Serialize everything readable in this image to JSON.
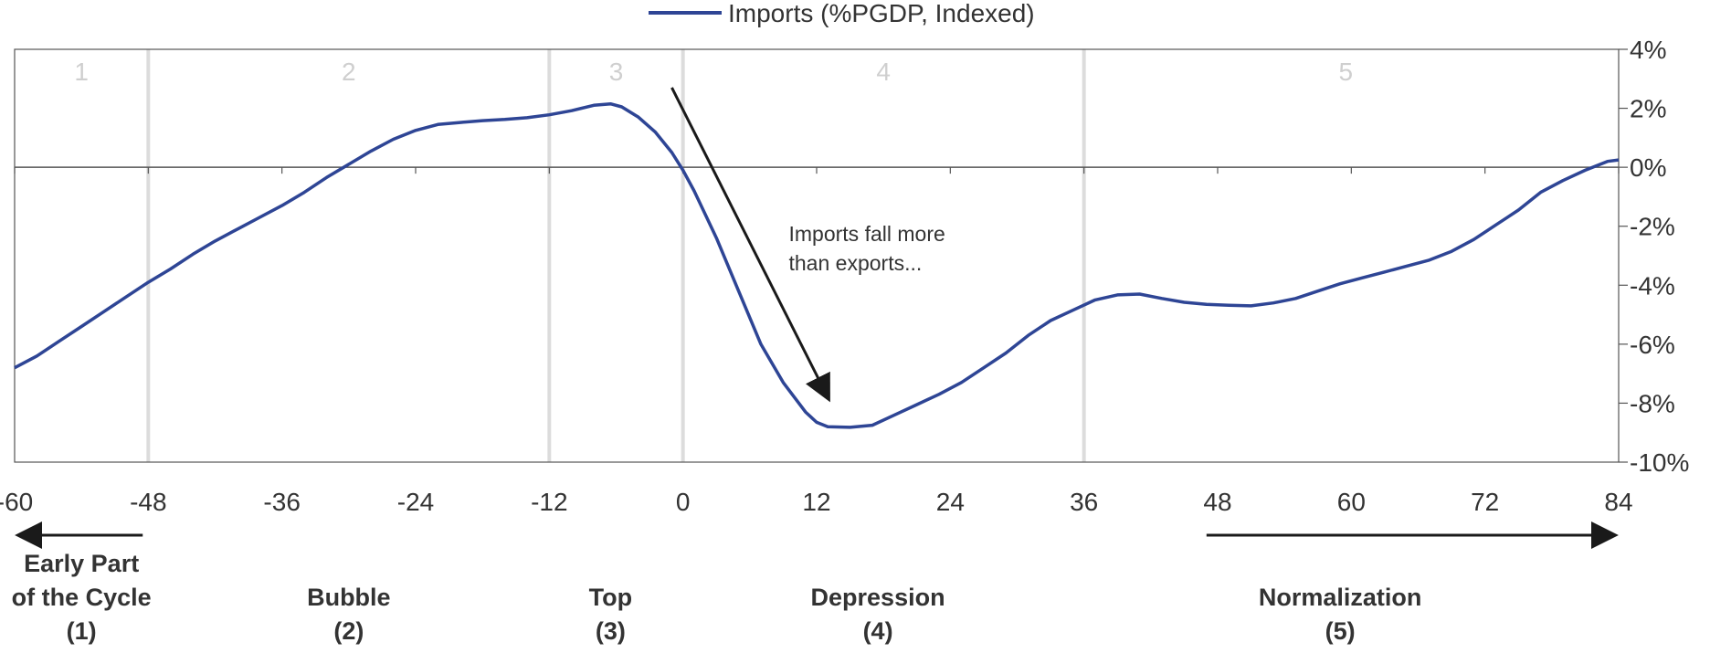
{
  "chart_data": {
    "type": "line",
    "legend": {
      "position": "top-center",
      "label": "Imports (%PGDP, Indexed)"
    },
    "x_ticks": [
      -60,
      -48,
      -36,
      -24,
      -12,
      0,
      12,
      24,
      36,
      48,
      60,
      72,
      84
    ],
    "y_ticks": [
      4,
      2,
      0,
      -2,
      -4,
      -6,
      -8,
      -10
    ],
    "y_tick_suffix": "%",
    "xlim": [
      -60,
      84
    ],
    "ylim": [
      -10,
      4
    ],
    "y_axis_side": "right",
    "grid": false,
    "phase_boundaries": [
      -48,
      -12,
      0,
      36
    ],
    "phase_numbers": [
      {
        "x": -54,
        "label": "1"
      },
      {
        "x": -30,
        "label": "2"
      },
      {
        "x": -6,
        "label": "3"
      },
      {
        "x": 18,
        "label": "4"
      },
      {
        "x": 59.5,
        "label": "5"
      }
    ],
    "series": [
      {
        "name": "Imports (%PGDP, Indexed)",
        "color": "#2e4595",
        "points": [
          [
            -60,
            -6.8
          ],
          [
            -58,
            -6.4
          ],
          [
            -56,
            -5.9
          ],
          [
            -54,
            -5.4
          ],
          [
            -52,
            -4.9
          ],
          [
            -50,
            -4.4
          ],
          [
            -48,
            -3.9
          ],
          [
            -46,
            -3.45
          ],
          [
            -44,
            -2.95
          ],
          [
            -42,
            -2.5
          ],
          [
            -40,
            -2.1
          ],
          [
            -38,
            -1.7
          ],
          [
            -36,
            -1.3
          ],
          [
            -34,
            -0.85
          ],
          [
            -32,
            -0.35
          ],
          [
            -30,
            0.1
          ],
          [
            -28,
            0.55
          ],
          [
            -26,
            0.95
          ],
          [
            -24,
            1.25
          ],
          [
            -22,
            1.45
          ],
          [
            -20,
            1.52
          ],
          [
            -18,
            1.58
          ],
          [
            -16,
            1.62
          ],
          [
            -14,
            1.68
          ],
          [
            -12,
            1.78
          ],
          [
            -10,
            1.92
          ],
          [
            -8,
            2.1
          ],
          [
            -6.5,
            2.15
          ],
          [
            -5.5,
            2.05
          ],
          [
            -4,
            1.7
          ],
          [
            -2.5,
            1.2
          ],
          [
            -1,
            0.5
          ],
          [
            0,
            -0.1
          ],
          [
            1,
            -0.8
          ],
          [
            3,
            -2.4
          ],
          [
            5,
            -4.2
          ],
          [
            7,
            -6.0
          ],
          [
            9,
            -7.3
          ],
          [
            11,
            -8.3
          ],
          [
            12,
            -8.65
          ],
          [
            13,
            -8.8
          ],
          [
            15,
            -8.82
          ],
          [
            17,
            -8.75
          ],
          [
            19,
            -8.4
          ],
          [
            21,
            -8.05
          ],
          [
            23,
            -7.7
          ],
          [
            25,
            -7.3
          ],
          [
            27,
            -6.8
          ],
          [
            29,
            -6.3
          ],
          [
            31,
            -5.7
          ],
          [
            33,
            -5.2
          ],
          [
            35,
            -4.85
          ],
          [
            37,
            -4.5
          ],
          [
            39,
            -4.33
          ],
          [
            41,
            -4.3
          ],
          [
            43,
            -4.45
          ],
          [
            45,
            -4.58
          ],
          [
            47,
            -4.65
          ],
          [
            49,
            -4.68
          ],
          [
            51,
            -4.7
          ],
          [
            53,
            -4.6
          ],
          [
            55,
            -4.45
          ],
          [
            57,
            -4.2
          ],
          [
            59,
            -3.95
          ],
          [
            61,
            -3.75
          ],
          [
            63,
            -3.55
          ],
          [
            65,
            -3.35
          ],
          [
            67,
            -3.15
          ],
          [
            69,
            -2.85
          ],
          [
            71,
            -2.45
          ],
          [
            73,
            -1.95
          ],
          [
            75,
            -1.45
          ],
          [
            77,
            -0.85
          ],
          [
            79,
            -0.45
          ],
          [
            81,
            -0.1
          ],
          [
            83,
            0.2
          ],
          [
            84,
            0.25
          ]
        ]
      }
    ],
    "annotations": [
      {
        "text": "Imports fall more",
        "x": 9.5,
        "y": -2.5
      },
      {
        "text": "than exports...",
        "x": 9.5,
        "y": -3.5
      }
    ],
    "annotation_arrow": {
      "from": [
        -1,
        2.7
      ],
      "to": [
        13,
        -7.8
      ]
    },
    "phase_labels": [
      {
        "x": -54,
        "lines": [
          "Early Part",
          "of the Cycle",
          "(1)"
        ]
      },
      {
        "x": -30,
        "lines": [
          "Bubble",
          "(2)"
        ]
      },
      {
        "x": -6.5,
        "lines": [
          "Top",
          "(3)"
        ]
      },
      {
        "x": 17.5,
        "lines": [
          "Depression",
          "(4)"
        ]
      },
      {
        "x": 59,
        "lines": [
          "Normalization",
          "(5)"
        ]
      }
    ],
    "bottom_arrows": [
      {
        "from": -48.5,
        "to": -59.5,
        "direction": "left"
      },
      {
        "from": 47,
        "to": 83.5,
        "direction": "right"
      }
    ]
  }
}
